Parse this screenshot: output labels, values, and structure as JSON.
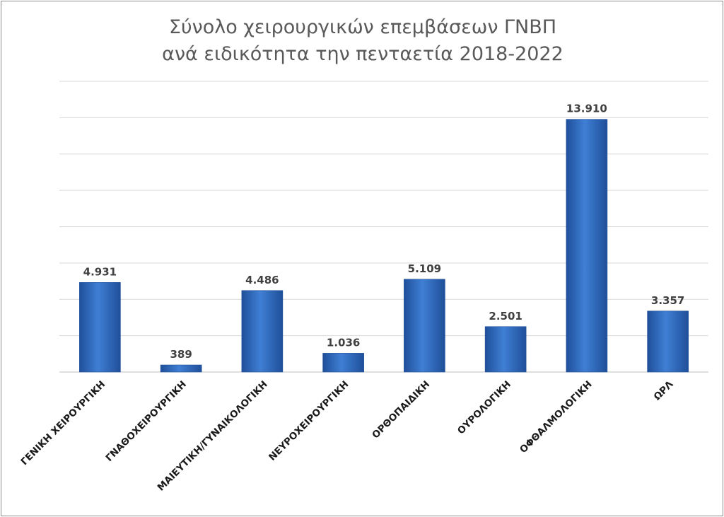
{
  "chart_data": {
    "type": "bar",
    "title": {
      "line1": "Σύνολο χειρουργικών επεμβάσεων ΓΝΒΠ",
      "line2": "ανά ειδικότητα την πενταετία 2018-2022"
    },
    "categories": [
      "ΓΕΝΙΚΗ ΧΕΙΡΟΥΡΓΙΚΗ",
      "ΓΝΑΘΟΧΕΙΡΟΥΡΓΙΚΗ",
      "ΜΑΙΕΥΤΙΚΗ/ΓΥΝΑΙΚΟΛΟΓΙΚΗ",
      "ΝΕΥΡΟΧΕΙΡΟΥΡΓΙΚΗ",
      "ΟΡΘΟΠΑΙΔΙΚΗ",
      "ΟΥΡΟΛΟΓΙΚΗ",
      "ΟΦΘΑΛΜΟΛΟΓΙΚΗ",
      "ΩΡΛ"
    ],
    "values": [
      4931,
      389,
      4486,
      1036,
      5109,
      2501,
      13910,
      3357
    ],
    "value_labels": [
      "4.931",
      "389",
      "4.486",
      "1.036",
      "5.109",
      "2.501",
      "13.910",
      "3.357"
    ],
    "ylim": [
      0,
      16000
    ],
    "grid": true,
    "grid_step": 2000,
    "y_tick_labels_shown": false,
    "legend": "none",
    "colors": {
      "bar": "#3f7fd4",
      "bar_dark": "#1f4f9a",
      "grid": "#d9d9d9",
      "text": "#404040",
      "title": "#595959"
    }
  }
}
